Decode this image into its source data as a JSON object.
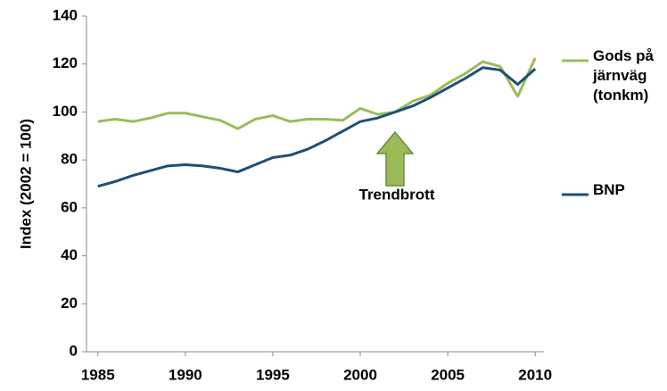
{
  "chart_data": {
    "type": "line",
    "y_label": "Index  (2002 = 100)",
    "annotation": "Trendbrott",
    "x": [
      1985,
      1986,
      1987,
      1988,
      1989,
      1990,
      1991,
      1992,
      1993,
      1994,
      1995,
      1996,
      1997,
      1998,
      1999,
      2000,
      2001,
      2002,
      2003,
      2004,
      2005,
      2006,
      2007,
      2008,
      2009,
      2010
    ],
    "series": [
      {
        "name": "Gods på järnväg (tonkm)",
        "color": "#9bbb59",
        "values": [
          96,
          97,
          96,
          97.5,
          99.5,
          99.5,
          98,
          96.5,
          93,
          97,
          98.5,
          96,
          97,
          97,
          96.5,
          101.5,
          99,
          100,
          104.5,
          107,
          112,
          116,
          121,
          119,
          106.5,
          122.5
        ]
      },
      {
        "name": "BNP",
        "color": "#1f4e79",
        "values": [
          69,
          71,
          73.5,
          75.5,
          77.5,
          78,
          77.5,
          76.5,
          75,
          78,
          81,
          82,
          84.5,
          88,
          92,
          96,
          97.5,
          100,
          102.5,
          106,
          110,
          114,
          118.5,
          117.5,
          111.5,
          118
        ]
      }
    ],
    "xlim": [
      1984.35,
      2010.5
    ],
    "xticks": [
      1985,
      1990,
      1995,
      2000,
      2005,
      2010
    ],
    "ylim": [
      0,
      140
    ],
    "yticks": [
      0,
      20,
      40,
      60,
      80,
      100,
      120,
      140
    ],
    "legend": "right"
  }
}
